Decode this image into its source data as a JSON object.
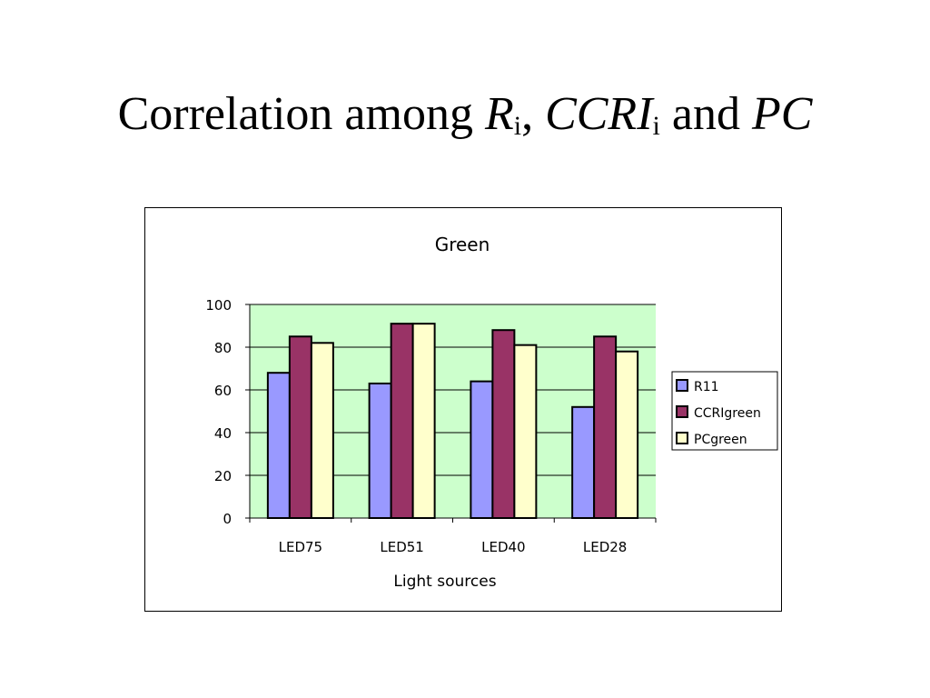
{
  "slide": {
    "title_part1": "Correlation among ",
    "title_r": "R",
    "title_r_sub": "i",
    "title_sep": ", ",
    "title_ccri": "CCRI",
    "title_ccri_sub": "i",
    "title_and": " and ",
    "title_pc": "PC"
  },
  "chart_data": {
    "type": "bar",
    "title": "Green",
    "xlabel": "Light sources",
    "ylabel": "",
    "categories": [
      "LED75",
      "LED51",
      "LED40",
      "LED28"
    ],
    "ylim": [
      0,
      100
    ],
    "yticks": [
      "0",
      "20",
      "40",
      "60",
      "80",
      "100"
    ],
    "ytick_values": [
      0,
      20,
      40,
      60,
      80,
      100
    ],
    "grid": true,
    "plot_background": "#ccffcc",
    "legend_position": "right",
    "series": [
      {
        "name": "R11",
        "color": "#9999ff",
        "values": [
          68,
          63,
          64,
          52
        ]
      },
      {
        "name": "CCRIgreen",
        "color": "#993366",
        "values": [
          85,
          91,
          88,
          85
        ]
      },
      {
        "name": "PCgreen",
        "color": "#ffffcc",
        "values": [
          82,
          91,
          81,
          78
        ]
      }
    ]
  }
}
